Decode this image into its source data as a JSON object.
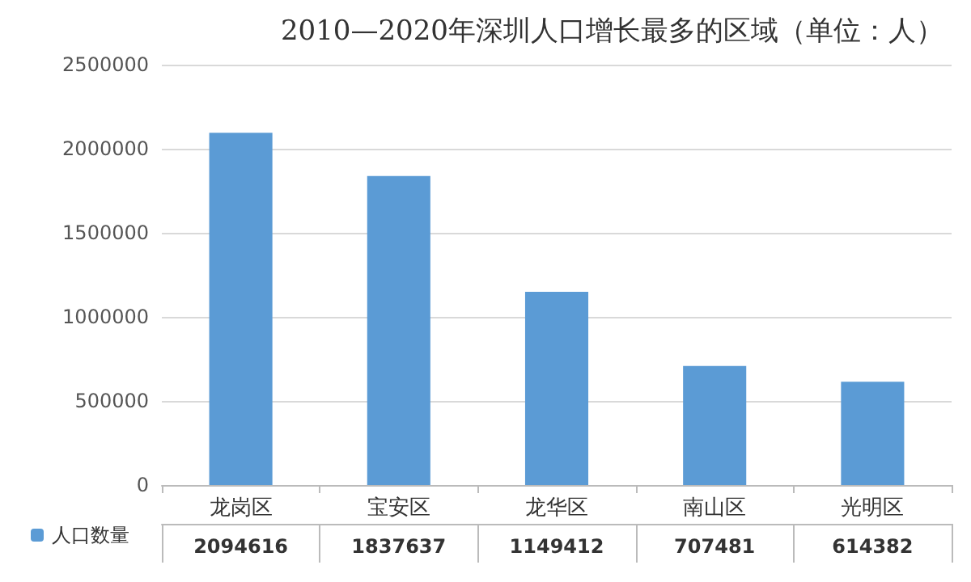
{
  "chart_data": {
    "type": "bar",
    "title": "2010—2020年深圳人口增长最多的区域（单位：人）",
    "categories": [
      "龙岗区",
      "宝安区",
      "龙华区",
      "南山区",
      "光明区"
    ],
    "series": [
      {
        "name": "人口数量",
        "color": "#5b9bd5",
        "values": [
          2094616,
          1837637,
          1149412,
          707481,
          614382
        ]
      }
    ],
    "ylim": [
      0,
      2500000
    ],
    "yticks": [
      0,
      500000,
      1000000,
      1500000,
      2000000,
      2500000
    ],
    "grid": "y",
    "legend": "bottom left",
    "data_labels": true
  }
}
